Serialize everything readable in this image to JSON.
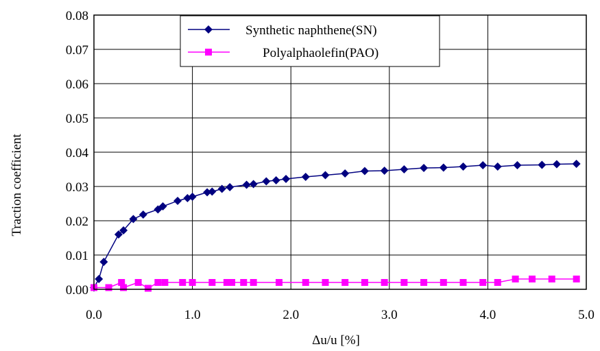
{
  "chart_data": {
    "type": "line",
    "title": "",
    "xlabel": "Δu/u  [%]",
    "ylabel": "Traction coefficient",
    "xlim": [
      0,
      5
    ],
    "ylim": [
      0,
      0.08
    ],
    "x_ticks": [
      "0.0",
      "1.0",
      "2.0",
      "3.0",
      "4.0",
      "5.0"
    ],
    "y_ticks": [
      "0.00",
      "0.01",
      "0.02",
      "0.03",
      "0.04",
      "0.05",
      "0.06",
      "0.07",
      "0.08"
    ],
    "grid": true,
    "legend_position": "top-center",
    "series": [
      {
        "name": "Synthetic naphthene(SN)",
        "color": "#000080",
        "marker": "diamond",
        "points": [
          [
            0.0,
            0.0005
          ],
          [
            0.05,
            0.003
          ],
          [
            0.1,
            0.008
          ],
          [
            0.25,
            0.016
          ],
          [
            0.3,
            0.0172
          ],
          [
            0.4,
            0.0205
          ],
          [
            0.5,
            0.0218
          ],
          [
            0.65,
            0.0233
          ],
          [
            0.7,
            0.0242
          ],
          [
            0.85,
            0.0258
          ],
          [
            0.95,
            0.0266
          ],
          [
            1.0,
            0.027
          ],
          [
            1.15,
            0.0283
          ],
          [
            1.2,
            0.0285
          ],
          [
            1.3,
            0.0293
          ],
          [
            1.38,
            0.0298
          ],
          [
            1.55,
            0.0305
          ],
          [
            1.62,
            0.0307
          ],
          [
            1.75,
            0.0315
          ],
          [
            1.85,
            0.0318
          ],
          [
            1.95,
            0.0322
          ],
          [
            2.15,
            0.0328
          ],
          [
            2.35,
            0.0333
          ],
          [
            2.55,
            0.0338
          ],
          [
            2.75,
            0.0345
          ],
          [
            2.95,
            0.0346
          ],
          [
            3.15,
            0.035
          ],
          [
            3.35,
            0.0354
          ],
          [
            3.55,
            0.0355
          ],
          [
            3.75,
            0.0358
          ],
          [
            3.95,
            0.0362
          ],
          [
            4.1,
            0.0358
          ],
          [
            4.3,
            0.0362
          ],
          [
            4.55,
            0.0363
          ],
          [
            4.7,
            0.0365
          ],
          [
            4.9,
            0.0366
          ]
        ]
      },
      {
        "name": "Polyalphaolefin(PAO)",
        "color": "#FF00FF",
        "marker": "square",
        "points": [
          [
            0.0,
            0.0005
          ],
          [
            0.15,
            0.0005
          ],
          [
            0.3,
            0.0005
          ],
          [
            0.55,
            0.0003
          ],
          [
            0.28,
            0.002
          ],
          [
            0.45,
            0.002
          ],
          [
            0.65,
            0.002
          ],
          [
            0.72,
            0.002
          ],
          [
            0.9,
            0.002
          ],
          [
            1.0,
            0.002
          ],
          [
            1.2,
            0.002
          ],
          [
            1.35,
            0.002
          ],
          [
            1.4,
            0.002
          ],
          [
            1.52,
            0.002
          ],
          [
            1.62,
            0.002
          ],
          [
            1.88,
            0.002
          ],
          [
            2.15,
            0.002
          ],
          [
            2.35,
            0.002
          ],
          [
            2.55,
            0.002
          ],
          [
            2.75,
            0.002
          ],
          [
            2.95,
            0.002
          ],
          [
            3.15,
            0.002
          ],
          [
            3.35,
            0.002
          ],
          [
            3.55,
            0.002
          ],
          [
            3.75,
            0.002
          ],
          [
            3.95,
            0.002
          ],
          [
            4.1,
            0.002
          ],
          [
            4.28,
            0.003
          ],
          [
            4.45,
            0.003
          ],
          [
            4.65,
            0.003
          ],
          [
            4.9,
            0.003
          ]
        ]
      }
    ]
  }
}
